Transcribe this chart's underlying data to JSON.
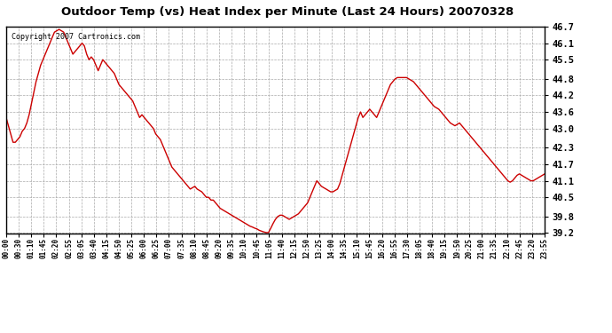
{
  "title": "Outdoor Temp (vs) Heat Index per Minute (Last 24 Hours) 20070328",
  "copyright_text": "Copyright 2007 Cartronics.com",
  "background_color": "#ffffff",
  "plot_bg_color": "#ffffff",
  "line_color": "#cc0000",
  "line_width": 1.0,
  "ylim": [
    39.2,
    46.7
  ],
  "yticks": [
    39.2,
    39.8,
    40.5,
    41.1,
    41.7,
    42.3,
    43.0,
    43.6,
    44.2,
    44.8,
    45.5,
    46.1,
    46.7
  ],
  "xtick_labels": [
    "00:00",
    "00:30",
    "01:10",
    "01:45",
    "02:20",
    "02:55",
    "03:05",
    "03:40",
    "04:15",
    "04:50",
    "05:25",
    "06:00",
    "06:25",
    "07:00",
    "07:35",
    "08:10",
    "08:45",
    "09:20",
    "09:35",
    "10:10",
    "10:45",
    "11:05",
    "11:40",
    "12:15",
    "12:50",
    "13:25",
    "14:00",
    "14:35",
    "15:10",
    "15:45",
    "16:20",
    "16:55",
    "17:30",
    "18:05",
    "18:40",
    "19:15",
    "19:50",
    "20:25",
    "21:00",
    "21:35",
    "22:10",
    "22:45",
    "23:20",
    "23:55"
  ],
  "data_y": [
    43.4,
    43.1,
    42.8,
    42.5,
    42.5,
    42.6,
    42.7,
    42.9,
    43.0,
    43.2,
    43.5,
    43.9,
    44.3,
    44.7,
    45.0,
    45.3,
    45.5,
    45.7,
    45.9,
    46.1,
    46.3,
    46.5,
    46.55,
    46.6,
    46.55,
    46.5,
    46.3,
    46.1,
    45.9,
    45.7,
    45.8,
    45.9,
    46.0,
    46.1,
    46.0,
    45.7,
    45.5,
    45.6,
    45.5,
    45.3,
    45.1,
    45.3,
    45.5,
    45.4,
    45.3,
    45.2,
    45.1,
    45.0,
    44.8,
    44.6,
    44.5,
    44.4,
    44.3,
    44.2,
    44.1,
    44.0,
    43.8,
    43.6,
    43.4,
    43.5,
    43.4,
    43.3,
    43.2,
    43.1,
    43.0,
    42.8,
    42.7,
    42.6,
    42.4,
    42.2,
    42.0,
    41.8,
    41.6,
    41.5,
    41.4,
    41.3,
    41.2,
    41.1,
    41.0,
    40.9,
    40.8,
    40.85,
    40.9,
    40.8,
    40.75,
    40.7,
    40.6,
    40.5,
    40.5,
    40.4,
    40.4,
    40.3,
    40.2,
    40.1,
    40.05,
    40.0,
    39.95,
    39.9,
    39.85,
    39.8,
    39.75,
    39.7,
    39.65,
    39.6,
    39.55,
    39.5,
    39.45,
    39.42,
    39.38,
    39.35,
    39.3,
    39.27,
    39.24,
    39.22,
    39.22,
    39.38,
    39.55,
    39.7,
    39.8,
    39.85,
    39.85,
    39.8,
    39.75,
    39.7,
    39.75,
    39.8,
    39.85,
    39.9,
    40.0,
    40.1,
    40.2,
    40.3,
    40.5,
    40.7,
    40.9,
    41.1,
    41.0,
    40.9,
    40.85,
    40.8,
    40.75,
    40.7,
    40.7,
    40.75,
    40.8,
    41.0,
    41.3,
    41.6,
    41.9,
    42.2,
    42.5,
    42.8,
    43.1,
    43.4,
    43.6,
    43.4,
    43.5,
    43.6,
    43.7,
    43.6,
    43.5,
    43.4,
    43.6,
    43.8,
    44.0,
    44.2,
    44.4,
    44.6,
    44.7,
    44.8,
    44.85,
    44.85,
    44.85,
    44.85,
    44.85,
    44.8,
    44.75,
    44.7,
    44.6,
    44.5,
    44.4,
    44.3,
    44.2,
    44.1,
    44.0,
    43.9,
    43.8,
    43.75,
    43.7,
    43.6,
    43.5,
    43.4,
    43.3,
    43.2,
    43.15,
    43.1,
    43.15,
    43.2,
    43.1,
    43.0,
    42.9,
    42.8,
    42.7,
    42.6,
    42.5,
    42.4,
    42.3,
    42.2,
    42.1,
    42.0,
    41.9,
    41.8,
    41.7,
    41.6,
    41.5,
    41.4,
    41.3,
    41.2,
    41.1,
    41.05,
    41.1,
    41.2,
    41.3,
    41.35,
    41.3,
    41.25,
    41.2,
    41.15,
    41.1,
    41.1,
    41.15,
    41.2,
    41.25,
    41.3,
    41.35
  ]
}
